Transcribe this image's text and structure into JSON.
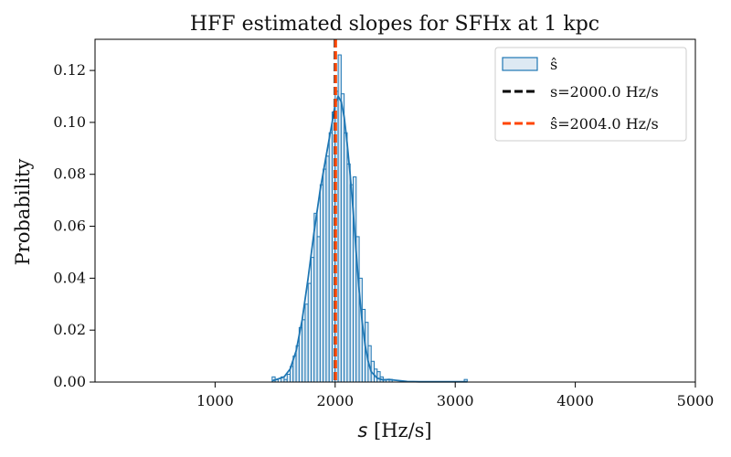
{
  "chart_data": {
    "type": "histogram",
    "title": "HFF estimated slopes for SFHx at 1 kpc",
    "xlabel_symbol": "s",
    "xlabel_unit": " [Hz/s]",
    "ylabel": "Probability",
    "xlim": [
      0,
      5000
    ],
    "ylim": [
      0,
      0.132
    ],
    "xticks": [
      1000,
      2000,
      3000,
      4000,
      5000
    ],
    "xtick_labels": [
      "1000",
      "2000",
      "3000",
      "4000",
      "5000"
    ],
    "yticks": [
      0.0,
      0.02,
      0.04,
      0.06,
      0.08,
      0.1,
      0.12
    ],
    "ytick_labels": [
      "0.00",
      "0.02",
      "0.04",
      "0.06",
      "0.08",
      "0.10",
      "0.12"
    ],
    "bin_width": 25,
    "bins": [
      [
        1475,
        0.002
      ],
      [
        1500,
        0.001
      ],
      [
        1525,
        0.0
      ],
      [
        1550,
        0.002
      ],
      [
        1575,
        0.001
      ],
      [
        1600,
        0.003
      ],
      [
        1625,
        0.006
      ],
      [
        1650,
        0.01
      ],
      [
        1675,
        0.014
      ],
      [
        1700,
        0.021
      ],
      [
        1725,
        0.024
      ],
      [
        1750,
        0.03
      ],
      [
        1775,
        0.038
      ],
      [
        1800,
        0.048
      ],
      [
        1825,
        0.065
      ],
      [
        1850,
        0.056
      ],
      [
        1875,
        0.076
      ],
      [
        1900,
        0.082
      ],
      [
        1925,
        0.087
      ],
      [
        1950,
        0.096
      ],
      [
        1975,
        0.104
      ],
      [
        2000,
        0.112
      ],
      [
        2025,
        0.126
      ],
      [
        2050,
        0.111
      ],
      [
        2075,
        0.096
      ],
      [
        2100,
        0.084
      ],
      [
        2125,
        0.076
      ],
      [
        2150,
        0.079
      ],
      [
        2175,
        0.056
      ],
      [
        2200,
        0.04
      ],
      [
        2225,
        0.028
      ],
      [
        2250,
        0.023
      ],
      [
        2275,
        0.014
      ],
      [
        2300,
        0.008
      ],
      [
        2325,
        0.005
      ],
      [
        2350,
        0.004
      ],
      [
        2375,
        0.002
      ],
      [
        2400,
        0.001
      ],
      [
        2425,
        0.0
      ],
      [
        2450,
        0.001
      ],
      [
        3075,
        0.001
      ]
    ],
    "kde": [
      [
        1475,
        0.0005
      ],
      [
        1525,
        0.0012
      ],
      [
        1575,
        0.002
      ],
      [
        1625,
        0.005
      ],
      [
        1675,
        0.012
      ],
      [
        1725,
        0.024
      ],
      [
        1775,
        0.04
      ],
      [
        1825,
        0.058
      ],
      [
        1875,
        0.074
      ],
      [
        1925,
        0.087
      ],
      [
        1975,
        0.1
      ],
      [
        2000,
        0.107
      ],
      [
        2025,
        0.11
      ],
      [
        2050,
        0.108
      ],
      [
        2075,
        0.102
      ],
      [
        2100,
        0.092
      ],
      [
        2125,
        0.08
      ],
      [
        2150,
        0.066
      ],
      [
        2175,
        0.05
      ],
      [
        2200,
        0.035
      ],
      [
        2225,
        0.023
      ],
      [
        2250,
        0.014
      ],
      [
        2275,
        0.008
      ],
      [
        2300,
        0.004
      ],
      [
        2350,
        0.0015
      ],
      [
        2400,
        0.0008
      ],
      [
        2450,
        0.001
      ],
      [
        2500,
        0.0007
      ],
      [
        2600,
        0.0002
      ],
      [
        2700,
        0.0001
      ],
      [
        2900,
        0.0001
      ],
      [
        3100,
        0.0001
      ]
    ],
    "vlines": [
      {
        "x": 2000.0,
        "color": "#000000"
      },
      {
        "x": 2004.0,
        "color": "#ff4500"
      }
    ],
    "legend_position": "top-right",
    "legend": {
      "hist_label": "ŝ",
      "true_label": "s=2000.0 Hz/s",
      "est_label": "ŝ̂=2004.0 Hz/s"
    },
    "colors": {
      "hist_fill": "#dde9f3",
      "hist_edge": "#1f77b4",
      "kde": "#1f77b4",
      "true_line": "#000000",
      "est_line": "#ff4500"
    }
  }
}
